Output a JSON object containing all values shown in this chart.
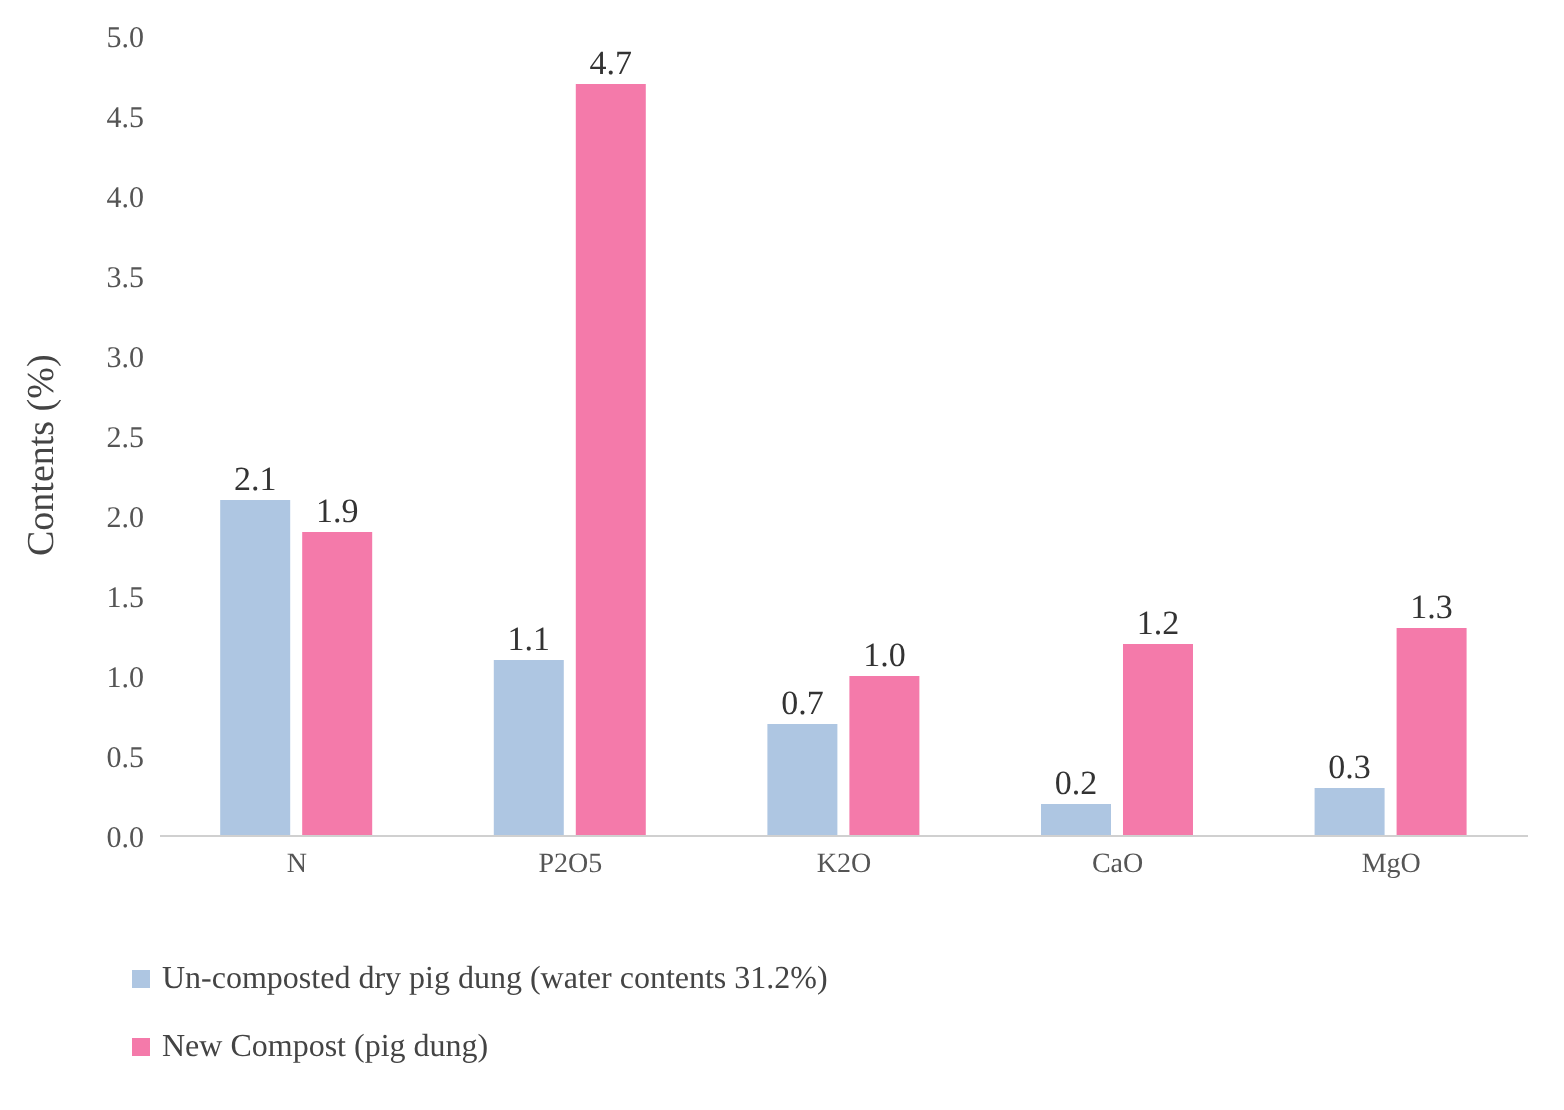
{
  "chart_data": {
    "type": "bar",
    "ylabel": "Contents (%)",
    "categories": [
      "N",
      "P2O5",
      "K2O",
      "CaO",
      "MgO"
    ],
    "series": [
      {
        "name": "Un-composted dry pig dung (water contents 31.2%)",
        "color": "#aec6e2",
        "values": [
          2.1,
          1.1,
          0.7,
          0.2,
          0.3
        ],
        "value_labels": [
          "2.1",
          "1.1",
          "0.7",
          "0.2",
          "0.3"
        ]
      },
      {
        "name": "New Compost (pig dung)",
        "color": "#f47aaa",
        "values": [
          1.9,
          4.7,
          1.0,
          1.2,
          1.3
        ],
        "value_labels": [
          "1.9",
          "4.7",
          "1.0",
          "1.2",
          "1.3"
        ]
      }
    ],
    "ylim": [
      0,
      5
    ],
    "yticks": [
      {
        "value": 0,
        "label": "0.0"
      },
      {
        "value": 0.5,
        "label": "0.5"
      },
      {
        "value": 1,
        "label": "1.0"
      },
      {
        "value": 1.5,
        "label": "1.5"
      },
      {
        "value": 2,
        "label": "2.0"
      },
      {
        "value": 2.5,
        "label": "2.5"
      },
      {
        "value": 3,
        "label": "3.0"
      },
      {
        "value": 3.5,
        "label": "3.5"
      },
      {
        "value": 4,
        "label": "4.0"
      },
      {
        "value": 4.5,
        "label": "4.5"
      },
      {
        "value": 5,
        "label": "5.0"
      }
    ],
    "grid": false,
    "legend": "bottom"
  }
}
